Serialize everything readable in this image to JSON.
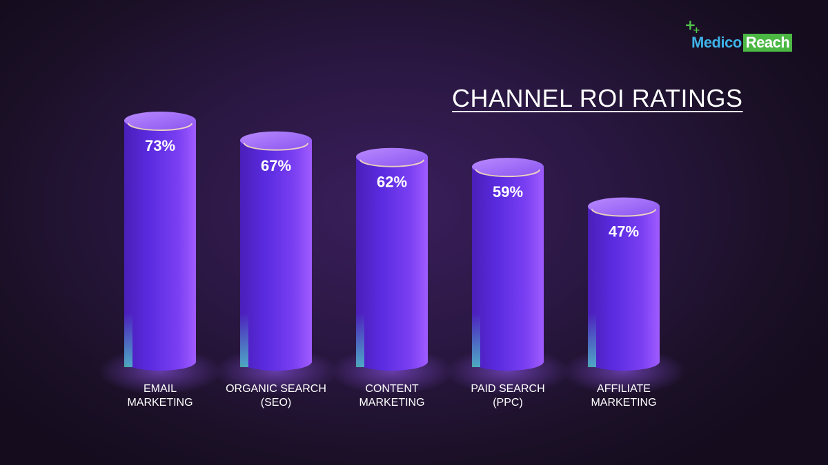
{
  "brand": {
    "name_part1": "Medico",
    "name_part2": "Reach",
    "icon": "plus-icon",
    "color_green": "#4cb844",
    "color_blue": "#3fb3e8"
  },
  "chart_data": {
    "type": "bar",
    "title": "CHANNEL ROI RATINGS",
    "categories": [
      [
        "EMAIL",
        "MARKETING"
      ],
      [
        "ORGANIC SEARCH",
        "(SEO)"
      ],
      [
        "CONTENT",
        "MARKETING"
      ],
      [
        "PAID SEARCH",
        "(PPC)"
      ],
      [
        "AFFILIATE",
        "MARKETING"
      ]
    ],
    "values": [
      73,
      67,
      62,
      59,
      47
    ],
    "data_labels": [
      "73%",
      "67%",
      "62%",
      "59%",
      "47%"
    ],
    "ylim": [
      0,
      100
    ],
    "bar_style": "cylinder",
    "bar_color": "#7b3ff0",
    "grid": false,
    "legend": "none"
  }
}
